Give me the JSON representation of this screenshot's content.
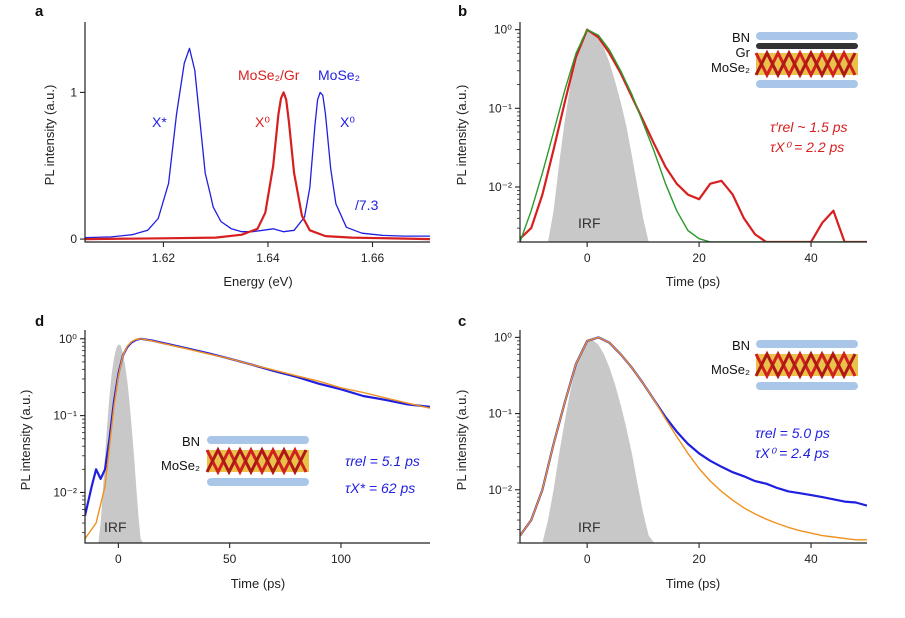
{
  "colors": {
    "mose2": "#1f1fe0",
    "hetero": "#d81f1f",
    "fit_b": "#2a9a2a",
    "fit_cd": "#f0901e",
    "irf": "#c8c8c8",
    "axis": "#222222"
  },
  "chart_data": [
    {
      "panel": "a",
      "type": "line",
      "xlabel": "Energy (eV)",
      "ylabel": "PL intensity (a.u.)",
      "xlim": [
        1.605,
        1.671
      ],
      "ylim": [
        -0.02,
        1.48
      ],
      "xticks": [
        1.62,
        1.64,
        1.66
      ],
      "xtick_labels": [
        "1.62",
        "1.64",
        "1.66"
      ],
      "yticks": [
        0,
        1
      ],
      "ytick_labels": [
        "0",
        "1"
      ],
      "series": [
        {
          "name": "MoSe₂",
          "color": "#1f1fe0",
          "x": [
            1.605,
            1.61,
            1.614,
            1.617,
            1.619,
            1.621,
            1.6225,
            1.624,
            1.625,
            1.626,
            1.627,
            1.628,
            1.629,
            1.6295,
            1.631,
            1.633,
            1.635,
            1.637,
            1.639,
            1.641,
            1.643,
            1.645,
            1.647,
            1.648,
            1.649,
            1.6495,
            1.65,
            1.6505,
            1.651,
            1.652,
            1.653,
            1.655,
            1.658,
            1.662,
            1.666,
            1.671
          ],
          "y": [
            0.01,
            0.015,
            0.03,
            0.06,
            0.14,
            0.38,
            0.85,
            1.2,
            1.3,
            1.15,
            0.8,
            0.45,
            0.3,
            0.22,
            0.12,
            0.07,
            0.05,
            0.05,
            0.06,
            0.07,
            0.05,
            0.06,
            0.15,
            0.35,
            0.78,
            0.95,
            1.0,
            0.98,
            0.85,
            0.48,
            0.24,
            0.08,
            0.04,
            0.025,
            0.02,
            0.02
          ]
        },
        {
          "name": "MoSe₂/Gr",
          "color": "#d81f1f",
          "x": [
            1.605,
            1.62,
            1.63,
            1.635,
            1.638,
            1.6395,
            1.641,
            1.642,
            1.6425,
            1.643,
            1.6435,
            1.644,
            1.645,
            1.6465,
            1.648,
            1.651,
            1.656,
            1.671
          ],
          "y": [
            0.0,
            0.005,
            0.01,
            0.03,
            0.07,
            0.18,
            0.5,
            0.85,
            0.96,
            1.0,
            0.95,
            0.8,
            0.45,
            0.16,
            0.06,
            0.02,
            0.01,
            0.0
          ]
        }
      ],
      "annotations": [
        "X*",
        "X⁰",
        "X⁰",
        "MoSe₂/Gr",
        "MoSe₂",
        "/7.3"
      ]
    },
    {
      "panel": "b",
      "type": "line",
      "scale": "log",
      "xlabel": "Time (ps)",
      "ylabel": "PL intensity (a.u.)",
      "xlim": [
        -12,
        50
      ],
      "ylim": [
        0.002,
        1.25
      ],
      "xticks": [
        0,
        20,
        40
      ],
      "xtick_labels": [
        "0",
        "20",
        "40"
      ],
      "yticks": [
        1,
        0.1,
        0.01
      ],
      "ytick_labels": [
        "10⁰",
        "10⁻¹",
        "10⁻²"
      ],
      "irf": {
        "x": [
          -7,
          -6,
          -5,
          -4,
          -3,
          -2,
          -1,
          0,
          1,
          2,
          3,
          4,
          5,
          6,
          7,
          8,
          9,
          10,
          11
        ],
        "y": [
          0.002,
          0.005,
          0.02,
          0.07,
          0.2,
          0.45,
          0.78,
          0.97,
          0.95,
          0.8,
          0.58,
          0.38,
          0.22,
          0.12,
          0.06,
          0.025,
          0.01,
          0.004,
          0.002
        ]
      },
      "series": [
        {
          "name": "data",
          "color": "#d81f1f",
          "x": [
            -12,
            -10,
            -8,
            -6,
            -4,
            -2,
            0,
            2,
            4,
            6,
            8,
            10,
            12,
            14,
            16,
            18,
            20,
            22,
            24,
            26,
            28,
            30,
            32,
            36,
            40,
            42,
            44,
            46,
            50
          ],
          "y": [
            0.0022,
            0.003,
            0.008,
            0.03,
            0.12,
            0.45,
            1.0,
            0.8,
            0.5,
            0.28,
            0.14,
            0.07,
            0.035,
            0.018,
            0.011,
            0.008,
            0.007,
            0.011,
            0.012,
            0.008,
            0.004,
            0.0025,
            0.002,
            0.002,
            0.002,
            0.0035,
            0.005,
            0.002,
            0.002
          ]
        },
        {
          "name": "fit",
          "color": "#2a9a2a",
          "x": [
            -12,
            -10,
            -8,
            -6,
            -4,
            -2,
            0,
            2,
            4,
            6,
            8,
            10,
            12,
            14,
            16,
            18,
            20,
            22,
            50
          ],
          "y": [
            0.002,
            0.005,
            0.015,
            0.05,
            0.17,
            0.5,
            1.0,
            0.85,
            0.55,
            0.3,
            0.15,
            0.065,
            0.028,
            0.011,
            0.005,
            0.0028,
            0.0022,
            0.002,
            0.002
          ]
        }
      ],
      "inset_labels": [
        "BN",
        "Gr",
        "MoSe₂"
      ],
      "irf_label": "IRF",
      "annotations": [
        "τ′rel ~ 1.5 ps",
        "τX⁰ = 2.2 ps"
      ]
    },
    {
      "panel": "d",
      "type": "line",
      "scale": "log",
      "xlabel": "Time (ps)",
      "ylabel": "PL intensity (a.u.)",
      "xlim": [
        -15,
        140
      ],
      "ylim": [
        0.0022,
        1.3
      ],
      "xticks": [
        0,
        50,
        100
      ],
      "xtick_labels": [
        "0",
        "50",
        "100"
      ],
      "yticks": [
        1,
        0.1,
        0.01
      ],
      "ytick_labels": [
        "10⁰",
        "10⁻¹",
        "10⁻²"
      ],
      "irf": {
        "x": [
          -9,
          -8,
          -7,
          -6,
          -5,
          -4,
          -3,
          -2,
          -1,
          0,
          1,
          2,
          3,
          4,
          5,
          6,
          7,
          8,
          9,
          10,
          11
        ],
        "y": [
          0.0022,
          0.004,
          0.01,
          0.03,
          0.08,
          0.18,
          0.35,
          0.55,
          0.75,
          0.85,
          0.82,
          0.66,
          0.45,
          0.28,
          0.15,
          0.07,
          0.03,
          0.012,
          0.005,
          0.0025,
          0.0022
        ]
      },
      "series": [
        {
          "name": "data",
          "color": "#1f1fe0",
          "x": [
            -15,
            -12,
            -10,
            -8,
            -6,
            -4,
            -2,
            0,
            2,
            4,
            6,
            8,
            10,
            15,
            20,
            30,
            40,
            50,
            60,
            70,
            80,
            90,
            100,
            110,
            120,
            130,
            140
          ],
          "y": [
            0.005,
            0.012,
            0.02,
            0.015,
            0.02,
            0.05,
            0.15,
            0.35,
            0.6,
            0.78,
            0.9,
            0.97,
            1.0,
            0.95,
            0.88,
            0.76,
            0.65,
            0.55,
            0.46,
            0.38,
            0.32,
            0.26,
            0.22,
            0.18,
            0.16,
            0.14,
            0.13
          ]
        },
        {
          "name": "fit",
          "color": "#f0901e",
          "x": [
            -15,
            -10,
            -6,
            -4,
            -2,
            0,
            2,
            4,
            6,
            8,
            10,
            15,
            20,
            30,
            40,
            50,
            60,
            70,
            80,
            90,
            100,
            110,
            120,
            130,
            140
          ],
          "y": [
            0.0025,
            0.004,
            0.012,
            0.04,
            0.13,
            0.33,
            0.6,
            0.8,
            0.92,
            0.98,
            1.0,
            0.94,
            0.87,
            0.75,
            0.64,
            0.55,
            0.46,
            0.39,
            0.33,
            0.28,
            0.23,
            0.2,
            0.17,
            0.145,
            0.125
          ]
        }
      ],
      "inset_labels": [
        "BN",
        "MoSe₂"
      ],
      "irf_label": "IRF",
      "annotations": [
        "τrel = 5.1 ps",
        "τX* = 62 ps"
      ]
    },
    {
      "panel": "c",
      "type": "line",
      "scale": "log",
      "xlabel": "Time (ps)",
      "ylabel": "PL intensity (a.u.)",
      "xlim": [
        -12,
        50
      ],
      "ylim": [
        0.002,
        1.25
      ],
      "xticks": [
        0,
        20,
        40
      ],
      "xtick_labels": [
        "0",
        "20",
        "40"
      ],
      "yticks": [
        1,
        0.1,
        0.01
      ],
      "ytick_labels": [
        "10⁰",
        "10⁻¹",
        "10⁻²"
      ],
      "irf": {
        "x": [
          -8,
          -7,
          -6,
          -5,
          -4,
          -3,
          -2,
          -1,
          0,
          1,
          2,
          3,
          4,
          5,
          6,
          7,
          8,
          9,
          10,
          11,
          12
        ],
        "y": [
          0.002,
          0.004,
          0.01,
          0.03,
          0.08,
          0.2,
          0.42,
          0.7,
          0.9,
          0.92,
          0.8,
          0.6,
          0.4,
          0.24,
          0.13,
          0.065,
          0.03,
          0.012,
          0.005,
          0.0025,
          0.002
        ]
      },
      "series": [
        {
          "name": "data",
          "color": "#1f1fe0",
          "x": [
            -12,
            -10,
            -8,
            -6,
            -4,
            -2,
            0,
            2,
            4,
            6,
            8,
            10,
            12,
            14,
            16,
            18,
            20,
            22,
            24,
            26,
            28,
            30,
            32,
            34,
            36,
            38,
            40,
            42,
            44,
            46,
            48,
            50
          ],
          "y": [
            0.0025,
            0.004,
            0.01,
            0.04,
            0.14,
            0.45,
            0.9,
            1.0,
            0.85,
            0.6,
            0.4,
            0.25,
            0.15,
            0.09,
            0.058,
            0.04,
            0.03,
            0.024,
            0.02,
            0.017,
            0.015,
            0.013,
            0.012,
            0.0105,
            0.0095,
            0.009,
            0.0085,
            0.008,
            0.0075,
            0.007,
            0.0068,
            0.0062
          ]
        },
        {
          "name": "fit",
          "color": "#f0901e",
          "x": [
            -12,
            -10,
            -8,
            -6,
            -4,
            -2,
            0,
            2,
            4,
            6,
            8,
            10,
            12,
            14,
            16,
            18,
            20,
            22,
            24,
            26,
            28,
            30,
            32,
            34,
            36,
            38,
            40,
            42,
            44,
            46,
            48,
            50
          ],
          "y": [
            0.0025,
            0.004,
            0.01,
            0.04,
            0.14,
            0.45,
            0.9,
            1.0,
            0.85,
            0.6,
            0.4,
            0.25,
            0.15,
            0.085,
            0.05,
            0.03,
            0.019,
            0.013,
            0.0095,
            0.0073,
            0.0058,
            0.0048,
            0.0041,
            0.0036,
            0.0032,
            0.0029,
            0.0027,
            0.0025,
            0.0024,
            0.0023,
            0.0022,
            0.0022
          ]
        }
      ],
      "inset_labels": [
        "BN",
        "MoSe₂"
      ],
      "irf_label": "IRF",
      "annotations": [
        "τrel = 5.0 ps",
        "τX⁰ = 2.4 ps"
      ]
    }
  ]
}
